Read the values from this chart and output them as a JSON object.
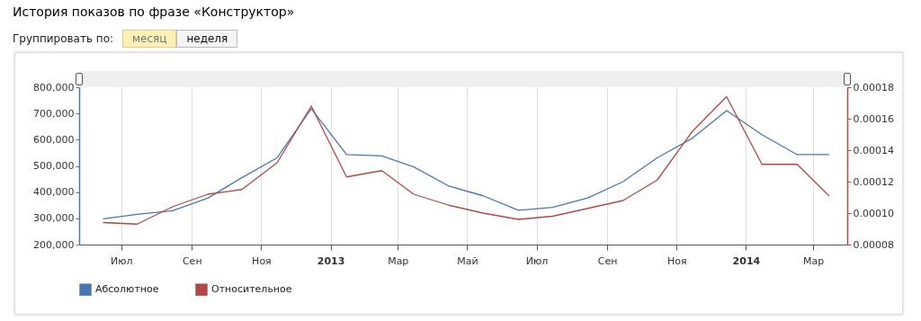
{
  "chart_data": {
    "type": "line",
    "title": "История показов по фразе «Конструктор»",
    "annotations": [
      "Группировать по:",
      "месяц",
      "неделя"
    ],
    "x": [
      "2012-06-15",
      "2012-07-15",
      "2012-08-15",
      "2012-09-15",
      "2012-10-15",
      "2012-11-15",
      "2012-12-15",
      "2013-01-15",
      "2013-02-15",
      "2013-03-15",
      "2013-04-15",
      "2013-05-15",
      "2013-06-15",
      "2013-07-15",
      "2013-08-15",
      "2013-09-15",
      "2013-10-15",
      "2013-11-15",
      "2013-12-15",
      "2014-01-15",
      "2014-02-15",
      "2014-03-15"
    ],
    "series": [
      {
        "name": "Абсолютное",
        "color": "#4a76b0",
        "values": [
          298000,
          315000,
          329000,
          377000,
          455000,
          531000,
          718000,
          543000,
          538000,
          496000,
          423000,
          386000,
          331000,
          342000,
          378000,
          440000,
          531000,
          606000,
          711000,
          619000,
          543000,
          543000
        ]
      },
      {
        "name": "Относительное",
        "color": "#b04844",
        "axis": "y2",
        "values": [
          9.4e-05,
          9.3e-05,
          0.000104,
          0.000112,
          0.000115,
          0.000132,
          0.000168,
          0.000123,
          0.000127,
          0.000112,
          0.000105,
          0.0001,
          9.6e-05,
          9.8e-05,
          0.000103,
          0.000108,
          0.000121,
          0.000152,
          0.000174,
          0.000131,
          0.000131,
          0.000111
        ]
      }
    ],
    "xlim": [
      "2012-05-25",
      "2014-03-31"
    ],
    "xticks": [
      {
        "value": "2012-07-01",
        "label": "Июл"
      },
      {
        "value": "2012-09-01",
        "label": "Сен"
      },
      {
        "value": "2012-11-01",
        "label": "Ноя"
      },
      {
        "value": "2013-01-01",
        "label": "2013"
      },
      {
        "value": "2013-03-01",
        "label": "Мар"
      },
      {
        "value": "2013-05-01",
        "label": "Май"
      },
      {
        "value": "2013-07-01",
        "label": "Июл"
      },
      {
        "value": "2013-09-01",
        "label": "Сен"
      },
      {
        "value": "2013-11-01",
        "label": "Ноя"
      },
      {
        "value": "2014-01-01",
        "label": "2014"
      },
      {
        "value": "2014-03-01",
        "label": "Мар"
      }
    ],
    "ylim": [
      200000,
      800000
    ],
    "yticks": [
      {
        "value": 200000,
        "label": "200,000"
      },
      {
        "value": 300000,
        "label": "300,000"
      },
      {
        "value": 400000,
        "label": "400,000"
      },
      {
        "value": 500000,
        "label": "500,000"
      },
      {
        "value": 600000,
        "label": "600,000"
      },
      {
        "value": 700000,
        "label": "700,000"
      },
      {
        "value": 800000,
        "label": "800,000"
      }
    ],
    "y2lim": [
      8e-05,
      0.00018
    ],
    "y2ticks": [
      {
        "value": 8e-05,
        "label": "0.00008"
      },
      {
        "value": 0.0001,
        "label": "0.00010"
      },
      {
        "value": 0.00012,
        "label": "0.00012"
      },
      {
        "value": 0.00014,
        "label": "0.00014"
      },
      {
        "value": 0.00016,
        "label": "0.00016"
      },
      {
        "value": 0.00018,
        "label": "0.00018"
      }
    ],
    "grid": "x",
    "legend": "bottom left",
    "marker": "none",
    "line_style": "solid"
  }
}
